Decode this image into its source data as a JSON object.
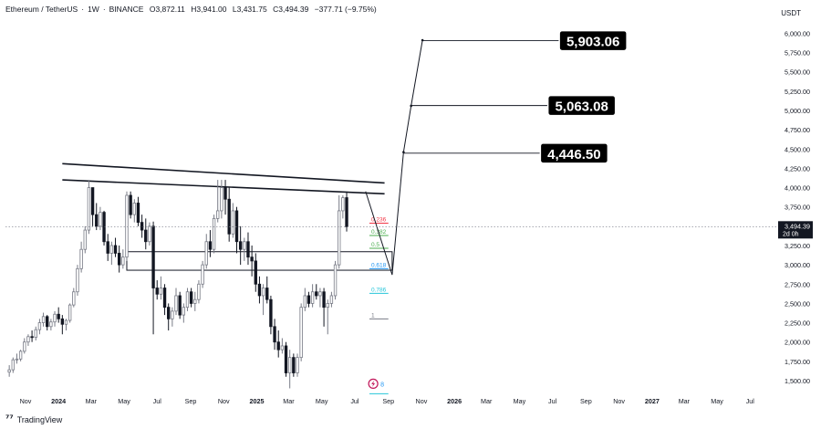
{
  "header": {
    "symbol": "Ethereum / TetherUS",
    "interval": "1W",
    "exchange": "BINANCE",
    "open": "O3,872.11",
    "high": "H3,941.00",
    "low": "L3,431.75",
    "close": "C3,494.39",
    "change": "−377.71 (−9.75%)"
  },
  "currency": "USDT",
  "branding": "TradingView",
  "chart_data": {
    "type": "candlestick",
    "y_ticks": [
      {
        "value": 6000,
        "label": "6,000.00"
      },
      {
        "value": 5750,
        "label": "5,750.00"
      },
      {
        "value": 5500,
        "label": "5,500.00"
      },
      {
        "value": 5250,
        "label": "5,250.00"
      },
      {
        "value": 5000,
        "label": "5,000.00"
      },
      {
        "value": 4750,
        "label": "4,750.00"
      },
      {
        "value": 4500,
        "label": "4,500.00"
      },
      {
        "value": 4250,
        "label": "4,250.00"
      },
      {
        "value": 4000,
        "label": "4,000.00"
      },
      {
        "value": 3750,
        "label": "3,750.00"
      },
      {
        "value": 3250,
        "label": "3,250.00"
      },
      {
        "value": 3000,
        "label": "3,000.00"
      },
      {
        "value": 2750,
        "label": "2,750.00"
      },
      {
        "value": 2500,
        "label": "2,500.00"
      },
      {
        "value": 2250,
        "label": "2,250.00"
      },
      {
        "value": 2000,
        "label": "2,000.00"
      },
      {
        "value": 1750,
        "label": "1,750.00"
      },
      {
        "value": 1500,
        "label": "1,500.00"
      }
    ],
    "ylim": [
      1370,
      6170
    ],
    "x_ticks": [
      {
        "label": "Nov",
        "date": "2023-11-01",
        "bold": false
      },
      {
        "label": "2024",
        "date": "2024-01-01",
        "bold": true
      },
      {
        "label": "Mar",
        "date": "2024-03-01",
        "bold": false
      },
      {
        "label": "May",
        "date": "2024-05-01",
        "bold": false
      },
      {
        "label": "Jul",
        "date": "2024-07-01",
        "bold": false
      },
      {
        "label": "Sep",
        "date": "2024-09-01",
        "bold": false
      },
      {
        "label": "Nov",
        "date": "2024-11-01",
        "bold": false
      },
      {
        "label": "2025",
        "date": "2025-01-01",
        "bold": true
      },
      {
        "label": "Mar",
        "date": "2025-03-01",
        "bold": false
      },
      {
        "label": "May",
        "date": "2025-05-01",
        "bold": false
      },
      {
        "label": "Jul",
        "date": "2025-07-01",
        "bold": false
      },
      {
        "label": "Sep",
        "date": "2025-09-01",
        "bold": false
      },
      {
        "label": "Nov",
        "date": "2025-11-01",
        "bold": false
      },
      {
        "label": "2026",
        "date": "2026-01-01",
        "bold": true
      },
      {
        "label": "Mar",
        "date": "2026-03-01",
        "bold": false
      },
      {
        "label": "May",
        "date": "2026-05-01",
        "bold": false
      },
      {
        "label": "Jul",
        "date": "2026-07-01",
        "bold": false
      },
      {
        "label": "Sep",
        "date": "2026-09-01",
        "bold": false
      },
      {
        "label": "Nov",
        "date": "2026-11-01",
        "bold": false
      },
      {
        "label": "2027",
        "date": "2027-01-01",
        "bold": true
      },
      {
        "label": "Mar",
        "date": "2027-03-01",
        "bold": false
      },
      {
        "label": "May",
        "date": "2027-05-01",
        "bold": false
      },
      {
        "label": "Jul",
        "date": "2027-07-01",
        "bold": false
      }
    ],
    "xlim": [
      "2023-09-25",
      "2027-08-20"
    ],
    "first_candle": "2023-10-02",
    "candle_interval_days": 7,
    "ohlc": [
      [
        1610,
        1700,
        1550,
        1640
      ],
      [
        1640,
        1800,
        1600,
        1770
      ],
      [
        1770,
        1850,
        1720,
        1780
      ],
      [
        1780,
        1900,
        1750,
        1880
      ],
      [
        1880,
        2050,
        1850,
        2000
      ],
      [
        2000,
        2100,
        1950,
        2070
      ],
      [
        2070,
        2150,
        2000,
        2060
      ],
      [
        2060,
        2200,
        2020,
        2160
      ],
      [
        2160,
        2300,
        2100,
        2250
      ],
      [
        2250,
        2380,
        2200,
        2330
      ],
      [
        2330,
        2350,
        2150,
        2200
      ],
      [
        2200,
        2300,
        2150,
        2260
      ],
      [
        2260,
        2400,
        2200,
        2360
      ],
      [
        2360,
        2450,
        2250,
        2300
      ],
      [
        2300,
        2350,
        2100,
        2230
      ],
      [
        2230,
        2300,
        2150,
        2280
      ],
      [
        2280,
        2500,
        2250,
        2480
      ],
      [
        2480,
        2700,
        2450,
        2650
      ],
      [
        2650,
        3000,
        2600,
        2950
      ],
      [
        2950,
        3300,
        2900,
        3200
      ],
      [
        3200,
        3500,
        3150,
        3450
      ],
      [
        3450,
        4100,
        3400,
        4000
      ],
      [
        4000,
        4000,
        3500,
        3650
      ],
      [
        3650,
        3800,
        3450,
        3500
      ],
      [
        3500,
        3750,
        3450,
        3680
      ],
      [
        3680,
        3700,
        3250,
        3300
      ],
      [
        3300,
        3400,
        3050,
        3150
      ],
      [
        3150,
        3300,
        3000,
        3250
      ],
      [
        3250,
        3350,
        3100,
        3150
      ],
      [
        3150,
        3250,
        2900,
        3000
      ],
      [
        3000,
        3200,
        2950,
        3100
      ],
      [
        3100,
        3950,
        3050,
        3900
      ],
      [
        3900,
        3950,
        3600,
        3650
      ],
      [
        3650,
        3850,
        3550,
        3800
      ],
      [
        3800,
        3880,
        3500,
        3550
      ],
      [
        3550,
        3650,
        3350,
        3450
      ],
      [
        3450,
        3600,
        3200,
        3300
      ],
      [
        3300,
        3550,
        3250,
        3500
      ],
      [
        3500,
        3560,
        2100,
        2700
      ],
      [
        2700,
        2800,
        2550,
        2620
      ],
      [
        2620,
        2850,
        2550,
        2700
      ],
      [
        2700,
        2750,
        2350,
        2450
      ],
      [
        2450,
        2500,
        2150,
        2300
      ],
      [
        2300,
        2450,
        2200,
        2400
      ],
      [
        2400,
        2700,
        2350,
        2600
      ],
      [
        2600,
        2650,
        2300,
        2350
      ],
      [
        2350,
        2500,
        2250,
        2450
      ],
      [
        2450,
        2700,
        2400,
        2650
      ],
      [
        2650,
        2700,
        2450,
        2500
      ],
      [
        2500,
        2650,
        2400,
        2550
      ],
      [
        2550,
        2800,
        2500,
        2750
      ],
      [
        2750,
        3050,
        2700,
        3000
      ],
      [
        3000,
        3400,
        2950,
        3300
      ],
      [
        3300,
        3450,
        3100,
        3200
      ],
      [
        3200,
        3650,
        3150,
        3600
      ],
      [
        3600,
        4100,
        3550,
        3700
      ],
      [
        3700,
        4100,
        3600,
        4000
      ],
      [
        4000,
        4100,
        3650,
        3850
      ],
      [
        3850,
        4000,
        3300,
        3400
      ],
      [
        3400,
        3800,
        3350,
        3700
      ],
      [
        3700,
        3750,
        3150,
        3300
      ],
      [
        3300,
        3500,
        3000,
        3200
      ],
      [
        3200,
        3350,
        3050,
        3300
      ],
      [
        3300,
        3420,
        3000,
        3100
      ],
      [
        3100,
        3250,
        2850,
        3050
      ],
      [
        3050,
        3150,
        2650,
        2750
      ],
      [
        2750,
        2850,
        2500,
        2600
      ],
      [
        2600,
        2750,
        2350,
        2700
      ],
      [
        2700,
        2850,
        2500,
        2550
      ],
      [
        2550,
        2600,
        2100,
        2200
      ],
      [
        2200,
        2300,
        1900,
        2000
      ],
      [
        2000,
        2150,
        1800,
        1900
      ],
      [
        1900,
        2050,
        1850,
        1950
      ],
      [
        1950,
        2000,
        1550,
        1600
      ],
      [
        1600,
        1900,
        1400,
        1800
      ],
      [
        1800,
        1850,
        1550,
        1600
      ],
      [
        1600,
        1850,
        1550,
        1800
      ],
      [
        1800,
        2500,
        1750,
        2450
      ],
      [
        2450,
        2700,
        2400,
        2600
      ],
      [
        2600,
        2650,
        2450,
        2500
      ],
      [
        2500,
        2750,
        2450,
        2650
      ],
      [
        2650,
        2750,
        2550,
        2600
      ],
      [
        2600,
        2700,
        2450,
        2650
      ],
      [
        2650,
        2700,
        2200,
        2450
      ],
      [
        2450,
        2550,
        2100,
        2500
      ],
      [
        2500,
        2650,
        2450,
        2600
      ],
      [
        2600,
        3050,
        2550,
        3000
      ],
      [
        3000,
        3900,
        2950,
        3700
      ],
      [
        3700,
        3900,
        3600,
        3870
      ],
      [
        3870,
        3941,
        3431,
        3494
      ]
    ],
    "trendlines": [
      {
        "from": [
          "2024-01-08",
          4310
        ],
        "to": [
          "2025-08-25",
          4060
        ]
      },
      {
        "from": [
          "2024-01-08",
          4100
        ],
        "to": [
          "2025-08-25",
          3920
        ]
      }
    ],
    "zone": {
      "from": "2024-05-06",
      "to": "2025-09-08",
      "top": 3170,
      "bottom": 2930
    },
    "fib_levels": [
      {
        "label": "0.236",
        "value": 3540,
        "color": "#f23645"
      },
      {
        "label": "0.382",
        "value": 3380,
        "color": "#4caf50"
      },
      {
        "label": "0.5",
        "value": 3215,
        "color": "#4caf50"
      },
      {
        "label": "0.618",
        "value": 2950,
        "color": "#2196f3"
      },
      {
        "label": "0.786",
        "value": 2630,
        "color": "#26c6da"
      },
      {
        "label": "1",
        "value": 2300,
        "color": "#787b86"
      }
    ],
    "fib_range": {
      "from": "2025-07-28",
      "to": "2025-09-01"
    },
    "projection_path": [
      [
        "2025-07-21",
        3950
      ],
      [
        "2025-09-08",
        2870
      ],
      [
        "2025-09-29",
        4460
      ],
      [
        "2025-10-13",
        5060
      ],
      [
        "2025-11-03",
        5910
      ]
    ],
    "targets": [
      {
        "label": "5,903.06",
        "value": 5903,
        "from": "2025-11-03"
      },
      {
        "label": "5,063.08",
        "value": 5063,
        "from": "2025-10-13"
      },
      {
        "label": "4,446.50",
        "value": 4446,
        "from": "2025-09-29"
      }
    ],
    "last_price": {
      "value": 3494.39,
      "label": "3,494.39",
      "countdown": "2d 0h"
    },
    "bottom_marker": "8",
    "colors": {
      "up": "#787b86",
      "down": "#131722",
      "grid": "#ffffff",
      "axis_text": "#131722"
    }
  }
}
